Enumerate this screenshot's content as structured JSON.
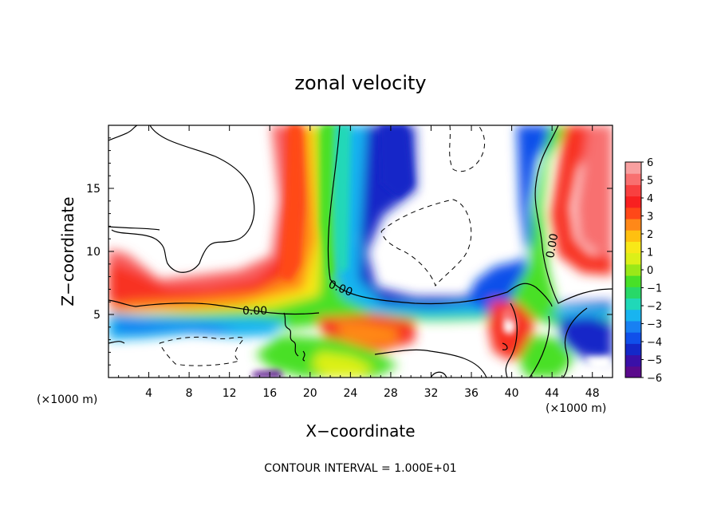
{
  "chart_data": {
    "type": "heatmap",
    "title": "zonal velocity",
    "xlabel": "X−coordinate",
    "ylabel": "Z−coordinate",
    "x_unit_left": "(×1000 m)",
    "x_unit_right": "(×1000 m)",
    "footer": "CONTOUR INTERVAL = 1.000E+01",
    "xlim": [
      0,
      50
    ],
    "ylim": [
      0,
      20
    ],
    "x_ticks": [
      4,
      8,
      12,
      16,
      20,
      24,
      28,
      32,
      36,
      40,
      44,
      48
    ],
    "x_tick_labels": [
      "4",
      "8",
      "12",
      "16",
      "20",
      "24",
      "28",
      "32",
      "36",
      "40",
      "44",
      "48"
    ],
    "y_ticks": [
      5,
      10,
      15
    ],
    "y_tick_labels": [
      "5",
      "10",
      "15"
    ],
    "colorbar": {
      "min": -6,
      "max": 6,
      "tick_labels": [
        "6",
        "5",
        "4",
        "3",
        "2",
        "1",
        "0",
        "−1",
        "−2",
        "−3",
        "−4",
        "−5",
        "−6"
      ],
      "colors": [
        "#5a0a8c",
        "#3a10a8",
        "#1428c8",
        "#1050ea",
        "#1880f2",
        "#18b4f0",
        "#20d8b8",
        "#28d868",
        "#48e028",
        "#9ae818",
        "#dcf018",
        "#f8e818",
        "#ffc010",
        "#ff8818",
        "#ff4818",
        "#f82020",
        "#f84040",
        "#f87070",
        "#f8a0a0"
      ]
    },
    "contour_labels": [
      "0.00",
      "0.00",
      "0.00"
    ]
  }
}
